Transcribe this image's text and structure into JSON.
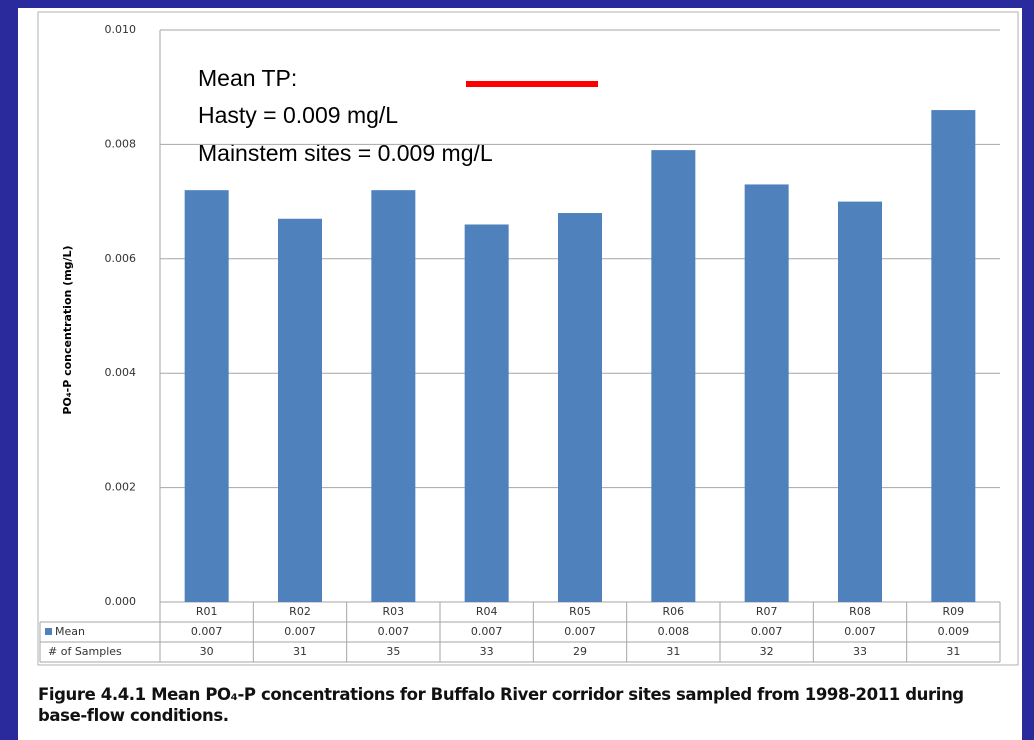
{
  "chart_data": {
    "type": "bar",
    "y_label": "PO₄-P concentration (mg/L)",
    "caption": "Figure 4.4.1 Mean PO₄-P concentrations for Buffalo River corridor sites sampled from 1998-2011 during base-flow conditions.",
    "annotations": [
      "Mean TP:",
      "Hasty = 0.009 mg/L",
      "Mainstem sites = 0.009 mg/L"
    ],
    "categories": [
      "R01",
      "R02",
      "R03",
      "R04",
      "R05",
      "R06",
      "R07",
      "R08",
      "R09"
    ],
    "series": [
      {
        "name": "Mean",
        "color": "#4f81bd",
        "values": [
          0.0072,
          0.0067,
          0.0072,
          0.0066,
          0.0068,
          0.0079,
          0.0073,
          0.007,
          0.0086
        ],
        "value_labels": [
          "0.007",
          "0.007",
          "0.007",
          "0.007",
          "0.007",
          "0.008",
          "0.007",
          "0.007",
          "0.009"
        ]
      }
    ],
    "samples": {
      "name": "# of Samples",
      "values": [
        30,
        31,
        35,
        33,
        29,
        31,
        32,
        33,
        31
      ]
    },
    "ylim": [
      0,
      0.01
    ],
    "yticks": [
      {
        "value": 0,
        "label": "0.000"
      },
      0.002,
      0.004,
      0.006,
      0.008,
      {
        "value": 0.01,
        "label": "0.010"
      }
    ],
    "grid": true
  }
}
